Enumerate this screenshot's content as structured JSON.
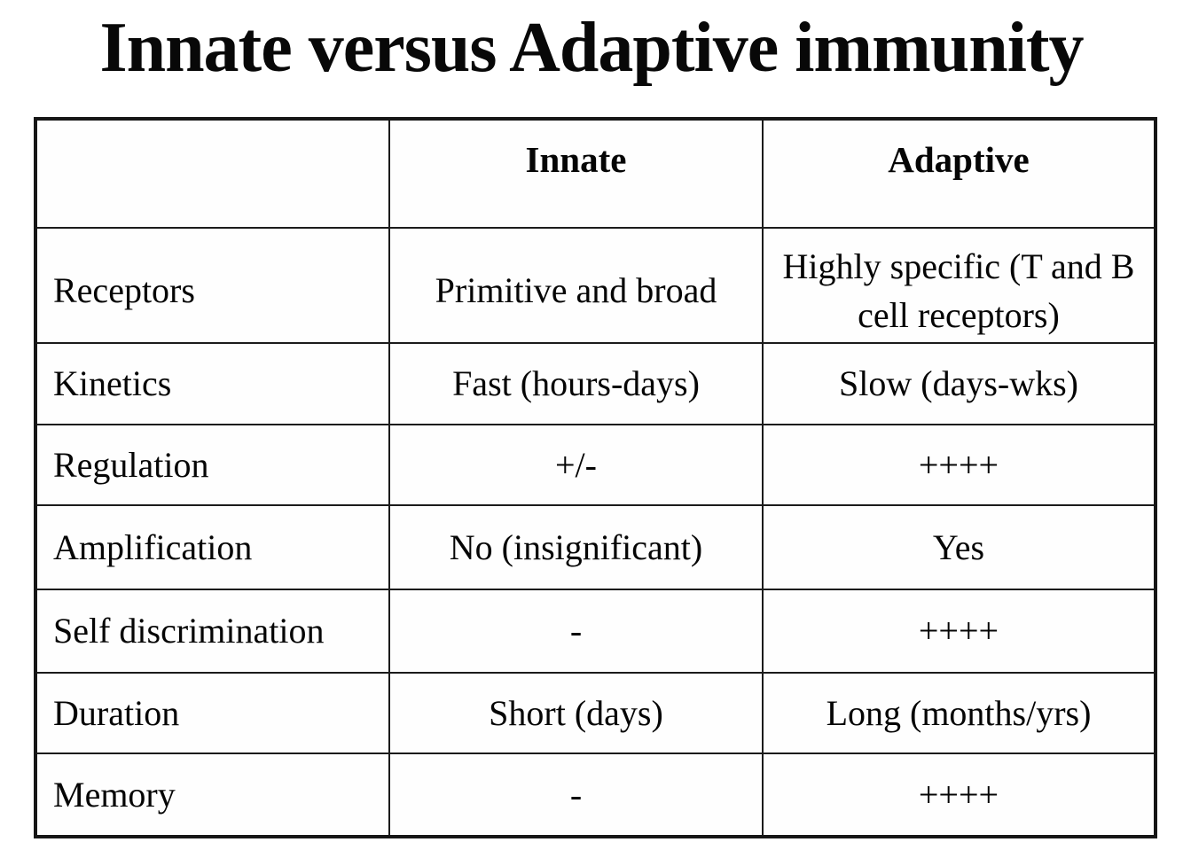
{
  "page": {
    "title": "Innate versus Adaptive immunity"
  },
  "table": {
    "columns": [
      "",
      "Innate",
      "Adaptive"
    ],
    "rows": [
      {
        "label": "Receptors",
        "innate": "Primitive and broad",
        "adaptive": "Highly specific (T and B cell receptors)"
      },
      {
        "label": "Kinetics",
        "innate": "Fast (hours-days)",
        "adaptive": "Slow (days-wks)"
      },
      {
        "label": "Regulation",
        "innate": "+/-",
        "adaptive": "++++"
      },
      {
        "label": "Amplification",
        "innate": "No (insignificant)",
        "adaptive": "Yes"
      },
      {
        "label": "Self discrimination",
        "innate": "-",
        "adaptive": "++++"
      },
      {
        "label": "Duration",
        "innate": "Short (days)",
        "adaptive": "Long (months/yrs)"
      },
      {
        "label": "Memory",
        "innate": "-",
        "adaptive": "++++"
      }
    ]
  },
  "colors": {
    "text": "#050505",
    "border": "#1b1b1b",
    "background": "#ffffff"
  }
}
